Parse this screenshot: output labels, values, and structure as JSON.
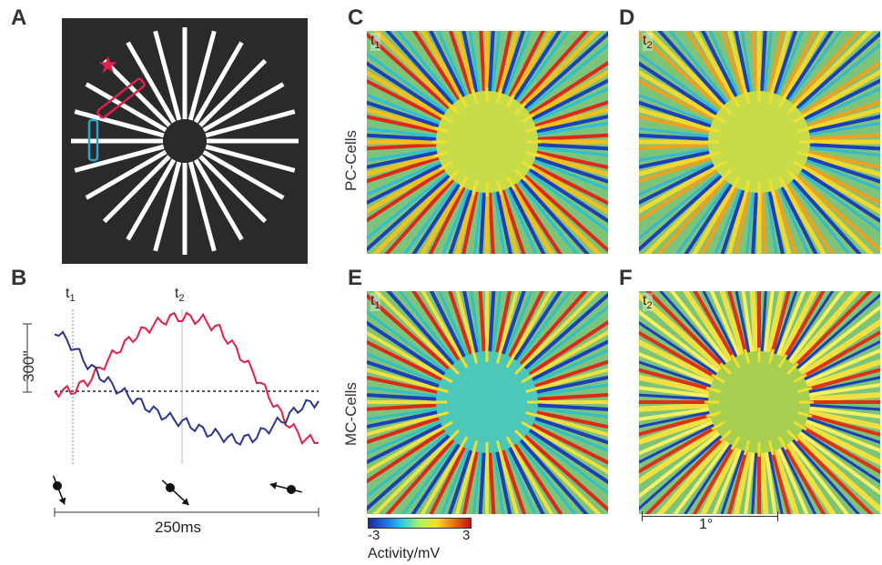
{
  "panels": {
    "A": "A",
    "B": "B",
    "C": "C",
    "D": "D",
    "E": "E",
    "F": "F"
  },
  "row_labels": {
    "top": "PC-Cells",
    "bottom": "MC-Cells"
  },
  "time_marks": {
    "t1": "t",
    "t1_sub": "1",
    "t2": "t",
    "t2_sub": "2"
  },
  "panel_b": {
    "amplitude_label": "300''",
    "duration_label": "250ms",
    "t1": "t",
    "t1_sub": "1",
    "t2": "t",
    "t2_sub": "2"
  },
  "colorbar": {
    "min": "-3",
    "max": "3",
    "label": "Activity/mV"
  },
  "scale_bar": {
    "label": "1°"
  },
  "colors": {
    "red_trace": "#e0204a",
    "blue_trace": "#2b3590",
    "stimulus_bg": "#2a2a2a",
    "map_bg": "#7cc47a",
    "center_pc": "#c8dc4a",
    "center_mc": "#4cc7b8"
  },
  "chart_data": {
    "type": "line",
    "title": "",
    "xlabel": "",
    "ylabel": "",
    "series": [
      {
        "values": [
          0,
          0,
          40,
          110,
          180,
          230,
          270,
          300,
          300,
          290,
          250,
          170,
          80,
          -20,
          -120,
          -190,
          -210
        ]
      },
      {
        "values": [
          250,
          190,
          110,
          50,
          0,
          -40,
          -80,
          -110,
          -130,
          -160,
          -180,
          -200,
          -190,
          -150,
          -110,
          -60,
          -40
        ]
      }
    ]
  }
}
